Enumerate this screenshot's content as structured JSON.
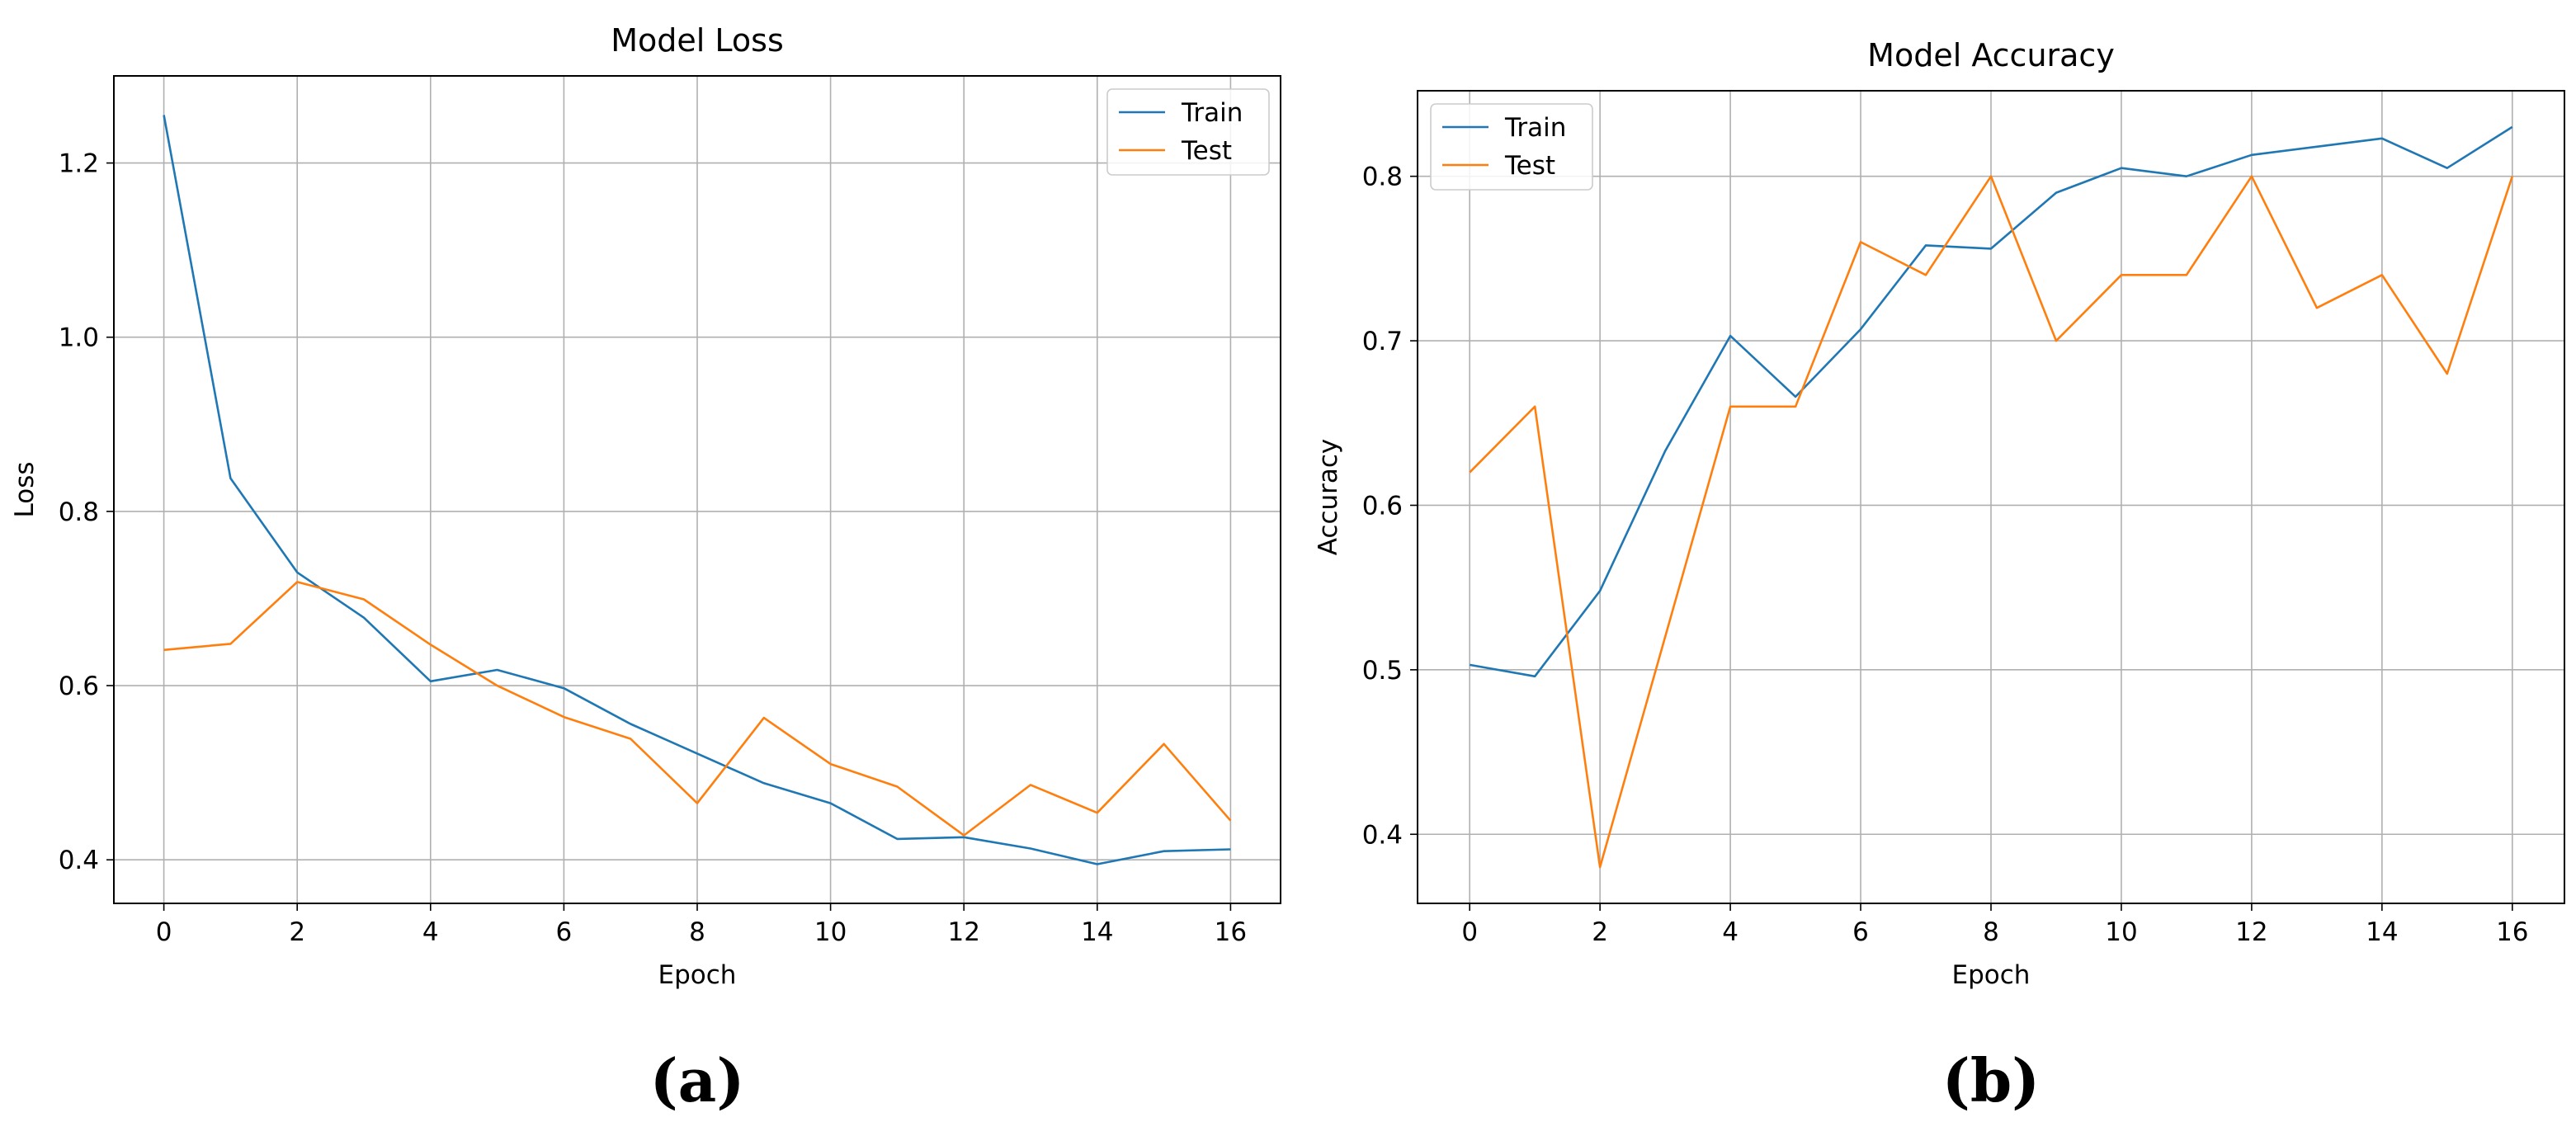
{
  "chart_data": [
    {
      "type": "line",
      "title": "Model Loss",
      "xlabel": "Epoch",
      "ylabel": "Loss",
      "panel_label": "(a)",
      "xlim": [
        -0.75,
        16.75
      ],
      "ylim": [
        0.35,
        1.3
      ],
      "xticks": [
        0,
        2,
        4,
        6,
        8,
        10,
        12,
        14,
        16
      ],
      "xtick_labels": [
        "0",
        "2",
        "4",
        "6",
        "8",
        "10",
        "12",
        "14",
        "16"
      ],
      "yticks": [
        0.4,
        0.6,
        0.8,
        1.0,
        1.2
      ],
      "ytick_labels": [
        "0.4",
        "0.6",
        "0.8",
        "1.0",
        "1.2"
      ],
      "grid": true,
      "legend_position": "upper-right",
      "x": [
        0,
        1,
        2,
        3,
        4,
        5,
        6,
        7,
        8,
        9,
        10,
        11,
        12,
        13,
        14,
        15,
        16
      ],
      "series": [
        {
          "name": "Train",
          "color": "#1f77b4",
          "values": [
            1.255,
            0.838,
            0.73,
            0.678,
            0.605,
            0.618,
            0.597,
            0.556,
            0.522,
            0.488,
            0.465,
            0.424,
            0.426,
            0.413,
            0.395,
            0.41,
            0.412
          ]
        },
        {
          "name": "Test",
          "color": "#ff7f0e",
          "values": [
            0.641,
            0.648,
            0.719,
            0.699,
            0.647,
            0.6,
            0.564,
            0.539,
            0.465,
            0.563,
            0.51,
            0.484,
            0.428,
            0.486,
            0.454,
            0.533,
            0.445
          ]
        }
      ]
    },
    {
      "type": "line",
      "title": "Model Accuracy",
      "xlabel": "Epoch",
      "ylabel": "Accuracy",
      "panel_label": "(b)",
      "xlim": [
        -0.8,
        16.8
      ],
      "ylim": [
        0.358,
        0.852
      ],
      "xticks": [
        0,
        2,
        4,
        6,
        8,
        10,
        12,
        14,
        16
      ],
      "xtick_labels": [
        "0",
        "2",
        "4",
        "6",
        "8",
        "10",
        "12",
        "14",
        "16"
      ],
      "yticks": [
        0.4,
        0.5,
        0.6,
        0.7,
        0.8
      ],
      "ytick_labels": [
        "0.4",
        "0.5",
        "0.6",
        "0.7",
        "0.8"
      ],
      "grid": true,
      "legend_position": "upper-left",
      "x": [
        0,
        1,
        2,
        3,
        4,
        5,
        6,
        7,
        8,
        9,
        10,
        11,
        12,
        13,
        14,
        15,
        16
      ],
      "series": [
        {
          "name": "Train",
          "color": "#1f77b4",
          "values": [
            0.503,
            0.496,
            0.548,
            0.633,
            0.703,
            0.666,
            0.707,
            0.758,
            0.756,
            0.79,
            0.805,
            0.8,
            0.813,
            0.818,
            0.823,
            0.805,
            0.83
          ]
        },
        {
          "name": "Test",
          "color": "#ff7f0e",
          "values": [
            0.62,
            0.66,
            0.38,
            0.52,
            0.66,
            0.66,
            0.76,
            0.74,
            0.8,
            0.7,
            0.74,
            0.74,
            0.8,
            0.72,
            0.74,
            0.68,
            0.8
          ]
        }
      ]
    }
  ]
}
